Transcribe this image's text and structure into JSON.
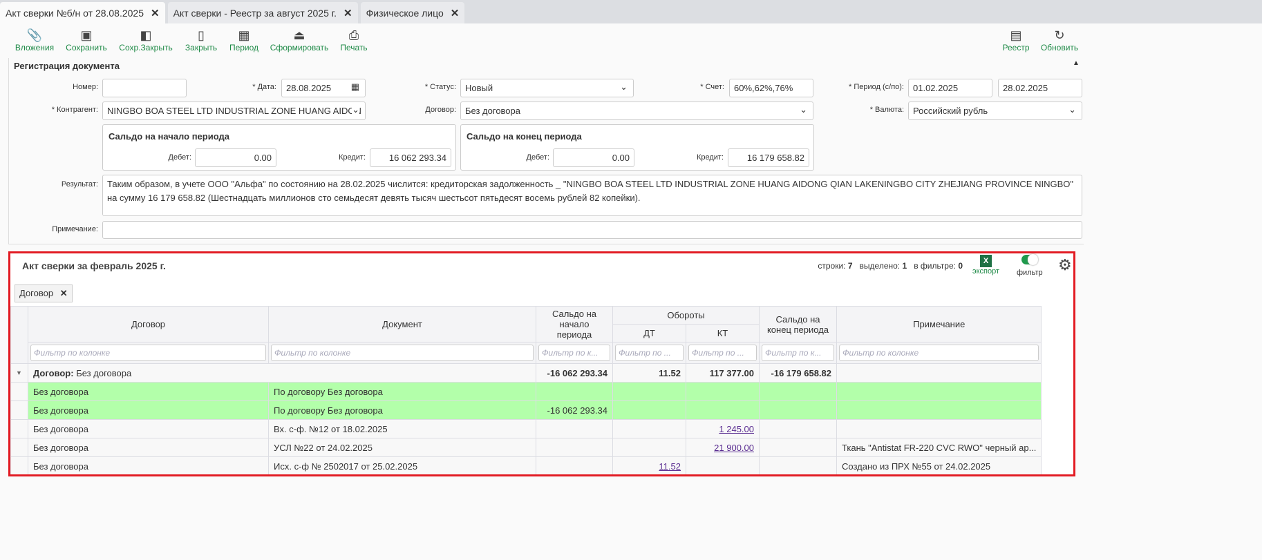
{
  "tabs": [
    {
      "label": "Акт сверки №б/н от 28.08.2025"
    },
    {
      "label": "Акт сверки - Реестр за август 2025 г."
    },
    {
      "label": "Физическое лицо"
    }
  ],
  "toolbar": {
    "left": [
      {
        "label": "Вложения",
        "icon": "paperclip-icon"
      },
      {
        "label": "Сохранить",
        "icon": "save-icon"
      },
      {
        "label": "Сохр.Закрыть",
        "icon": "save-close-icon"
      },
      {
        "label": "Закрыть",
        "icon": "door-icon"
      },
      {
        "label": "Период",
        "icon": "calendar-icon"
      },
      {
        "label": "Сформировать",
        "icon": "upload-list-icon"
      },
      {
        "label": "Печать",
        "icon": "printer-icon"
      }
    ],
    "right": [
      {
        "label": "Реестр",
        "icon": "registry-icon"
      },
      {
        "label": "Обновить",
        "icon": "refresh-icon"
      }
    ]
  },
  "form": {
    "section_title": "Регистрация документа",
    "number_label": "Номер:",
    "number_value": "",
    "date_label": "* Дата:",
    "date_value": "28.08.2025",
    "status_label": "* Статус:",
    "status_value": "Новый",
    "account_label": "* Счет:",
    "account_value": "60%,62%,76%",
    "period_label": "* Период (с/по):",
    "period_from": "01.02.2025",
    "period_to": "28.02.2025",
    "counterparty_label": "* Контрагент:",
    "counterparty_value": "NINGBO BOA STEEL LTD INDUSTRIAL ZONE HUANG AIDON",
    "contract_label": "Договор:",
    "contract_value": "Без договора",
    "currency_label": "* Валюта:",
    "currency_value": "Российский рубль",
    "opening": {
      "title": "Сальдо на начало периода",
      "debit_label": "Дебет:",
      "debit": "0.00",
      "credit_label": "Кредит:",
      "credit": "16 062 293.34"
    },
    "closing": {
      "title": "Сальдо на конец периода",
      "debit_label": "Дебет:",
      "debit": "0.00",
      "credit_label": "Кредит:",
      "credit": "16 179 658.82"
    },
    "result_label": "Результат:",
    "result_value": "Таким образом, в учете ООО \"Альфа\" по состоянию на 28.02.2025 числится: кредиторская задолженность _ \"NINGBO BOA STEEL LTD INDUSTRIAL ZONE HUANG AIDONG QIAN LAKENINGBO CITY ZHEJIANG PROVINCE NINGBO\" на сумму 16 179 658.82 (Шестнадцать миллионов сто семьдесят девять тысяч шестьсот пятьдесят восемь рублей 82 копейки).",
    "note_label": "Примечание:",
    "note_value": ""
  },
  "grid": {
    "title": "Акт сверки за февраль 2025 г.",
    "rows_label": "строки:",
    "rows": "7",
    "selected_label": "выделено:",
    "selected": "1",
    "filtered_label": "в фильтре:",
    "filtered": "0",
    "export_label": "экспорт",
    "filter_label": "фильтр",
    "filter_on": true,
    "group_chip": "Договор",
    "headers": {
      "contract": "Договор",
      "document": "Документ",
      "opening": "Сальдо на начало периода",
      "turnover": "Обороты",
      "dt": "ДТ",
      "kt": "КТ",
      "closing": "Сальдо на конец периода",
      "note": "Примечание"
    },
    "filter_placeholder": "Фильтр по колонке",
    "filter_placeholder_short": "Фильтр по к...",
    "filter_placeholder_dt": "Фильтр по ...",
    "group": {
      "label": "Договор:",
      "value": "Без договора",
      "opening": "-16 062 293.34",
      "dt": "11.52",
      "kt": "117 377.00",
      "closing": "-16 179 658.82"
    },
    "rows_data": [
      {
        "contract": "Без договора",
        "document": "По договору Без договора",
        "opening": "",
        "dt": "",
        "kt": "",
        "closing": "",
        "note": "",
        "highlight": true
      },
      {
        "contract": "Без договора",
        "document": "По договору Без договора",
        "opening": "-16 062 293.34",
        "dt": "",
        "kt": "",
        "closing": "",
        "note": "",
        "highlight": true
      },
      {
        "contract": "Без договора",
        "document": "Вх. с-ф. №12 от 18.02.2025",
        "opening": "",
        "dt": "",
        "kt": "1 245.00",
        "closing": "",
        "note": ""
      },
      {
        "contract": "Без договора",
        "document": "УСЛ №22 от 24.02.2025",
        "opening": "",
        "dt": "",
        "kt": "21 900.00",
        "closing": "",
        "note": "Ткань \"Antistat FR-220 CVC RWO\" черный ар..."
      },
      {
        "contract": "Без договора",
        "document": "Исх. с-ф № 2502017 от 25.02.2025",
        "opening": "",
        "dt": "11.52",
        "kt": "",
        "closing": "",
        "note": "Создано из ПРХ №55 от 24.02.2025"
      }
    ]
  }
}
